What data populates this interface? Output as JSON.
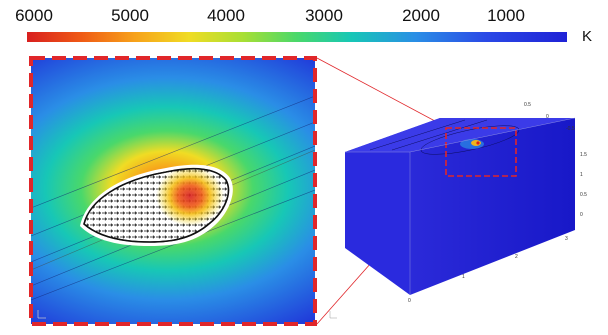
{
  "colorbar": {
    "ticks": [
      "6000",
      "5000",
      "4000",
      "3000",
      "2000",
      "1000"
    ],
    "unit": "K",
    "colors": [
      "#d81f1f",
      "#f7a21a",
      "#f0dc24",
      "#49d86b",
      "#17c7b6",
      "#2a49e6",
      "#1f22d6"
    ]
  },
  "block_axis_labels": {
    "top_numbers": [
      "0.5",
      "0",
      "-0.5"
    ],
    "side_numbers": [
      "1.5",
      "1",
      "0.5",
      "0"
    ],
    "bottom_numbers": [
      "3",
      "2",
      "1",
      "0"
    ]
  },
  "accent_colors": {
    "inset_border": "#e0262a",
    "leader_line": "#e0262a"
  }
}
